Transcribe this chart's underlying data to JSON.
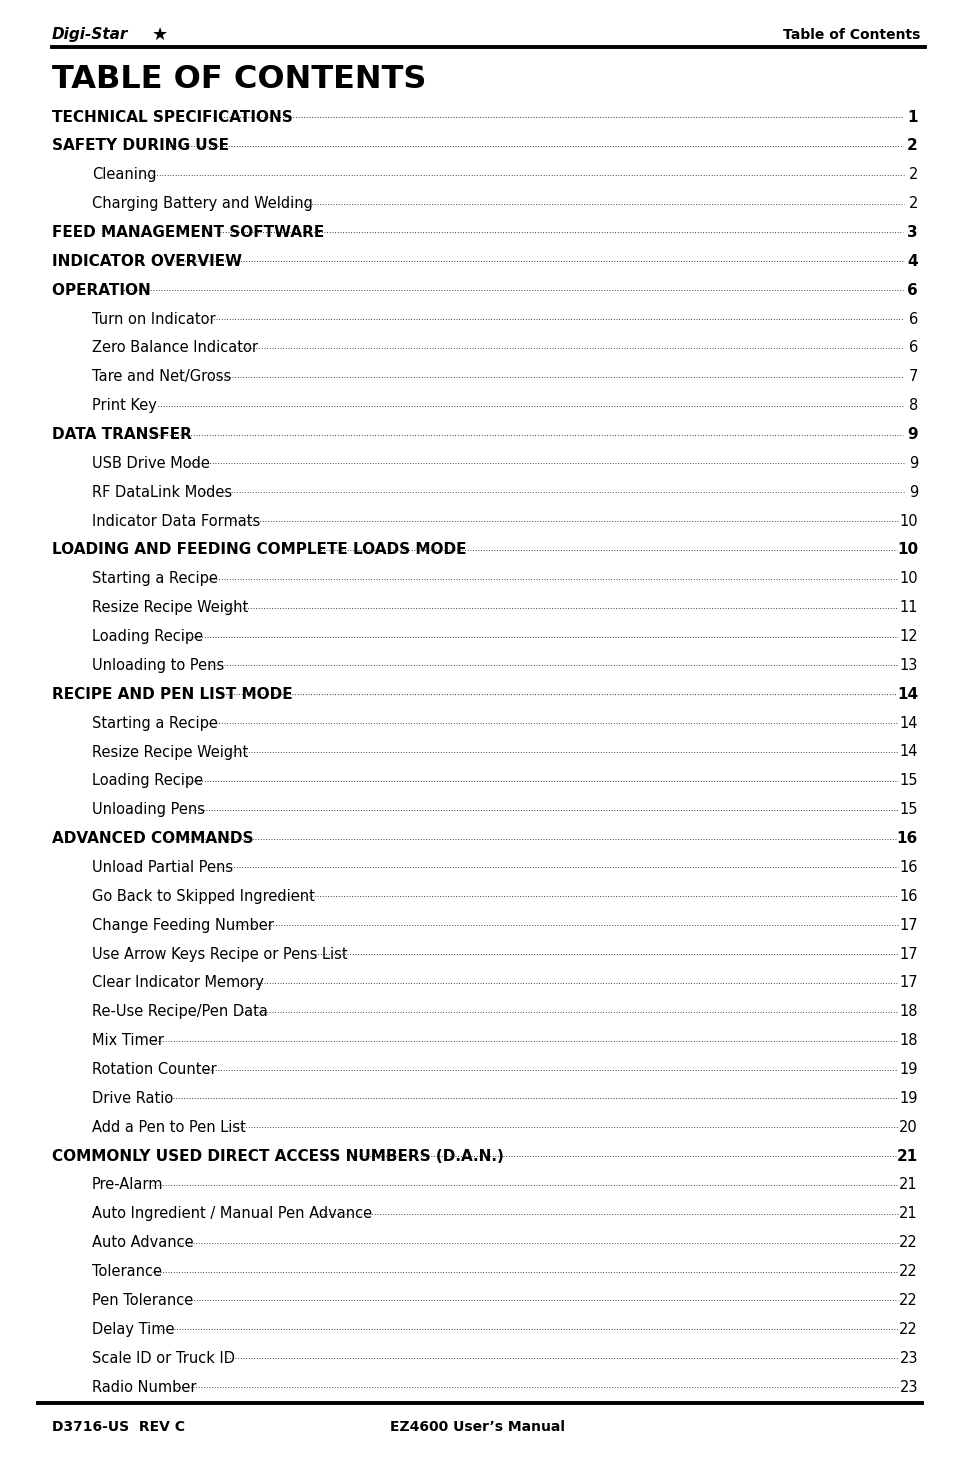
{
  "title": "TABLE OF CONTENTS",
  "header_right": "Table of Contents",
  "footer_left": "D3716-US  REV C",
  "footer_center": "EZ4600 User’s Manual",
  "bg_color": "#ffffff",
  "entries": [
    {
      "text": "TECHNICAL SPECIFICATIONS",
      "page": "1",
      "indent": 0,
      "bold": true
    },
    {
      "text": "SAFETY DURING USE",
      "page": "2",
      "indent": 0,
      "bold": true
    },
    {
      "text": "Cleaning",
      "page": "2",
      "indent": 1,
      "bold": false
    },
    {
      "text": "Charging Battery and Welding ",
      "page": "2",
      "indent": 1,
      "bold": false
    },
    {
      "text": "FEED MANAGEMENT SOFTWARE ",
      "page": "3",
      "indent": 0,
      "bold": true
    },
    {
      "text": "INDICATOR OVERVIEW",
      "page": "4",
      "indent": 0,
      "bold": true
    },
    {
      "text": "OPERATION ",
      "page": "6",
      "indent": 0,
      "bold": true
    },
    {
      "text": "Turn on Indicator ",
      "page": "6",
      "indent": 1,
      "bold": false
    },
    {
      "text": "Zero Balance Indicator ",
      "page": "6",
      "indent": 1,
      "bold": false
    },
    {
      "text": "Tare and Net/Gross",
      "page": "7",
      "indent": 1,
      "bold": false
    },
    {
      "text": "Print Key ",
      "page": "8",
      "indent": 1,
      "bold": false
    },
    {
      "text": "DATA TRANSFER ",
      "page": "9",
      "indent": 0,
      "bold": true
    },
    {
      "text": "USB Drive Mode",
      "page": "9",
      "indent": 1,
      "bold": false
    },
    {
      "text": "RF DataLink Modes",
      "page": "9",
      "indent": 1,
      "bold": false
    },
    {
      "text": "Indicator Data Formats",
      "page": "10",
      "indent": 1,
      "bold": false
    },
    {
      "text": "LOADING AND FEEDING COMPLETE LOADS MODE ",
      "page": "10",
      "indent": 0,
      "bold": true
    },
    {
      "text": "Starting a Recipe ",
      "page": "10",
      "indent": 1,
      "bold": false
    },
    {
      "text": "Resize Recipe Weight",
      "page": "11",
      "indent": 1,
      "bold": false
    },
    {
      "text": "Loading Recipe",
      "page": "12",
      "indent": 1,
      "bold": false
    },
    {
      "text": "Unloading to Pens ",
      "page": "13",
      "indent": 1,
      "bold": false
    },
    {
      "text": "RECIPE AND PEN LIST MODE ",
      "page": "14",
      "indent": 0,
      "bold": true
    },
    {
      "text": "Starting a Recipe ",
      "page": "14",
      "indent": 1,
      "bold": false
    },
    {
      "text": "Resize Recipe Weight ",
      "page": "14",
      "indent": 1,
      "bold": false
    },
    {
      "text": "Loading Recipe",
      "page": "15",
      "indent": 1,
      "bold": false
    },
    {
      "text": "Unloading Pens ",
      "page": "15",
      "indent": 1,
      "bold": false
    },
    {
      "text": "ADVANCED COMMANDS",
      "page": "16",
      "indent": 0,
      "bold": true
    },
    {
      "text": "Unload Partial Pens",
      "page": "16",
      "indent": 1,
      "bold": false
    },
    {
      "text": "Go Back to Skipped Ingredient",
      "page": "16",
      "indent": 1,
      "bold": false
    },
    {
      "text": "Change Feeding Number ",
      "page": "17",
      "indent": 1,
      "bold": false
    },
    {
      "text": "Use Arrow Keys Recipe or Pens List ",
      "page": "17",
      "indent": 1,
      "bold": false
    },
    {
      "text": "Clear Indicator Memory ",
      "page": "17",
      "indent": 1,
      "bold": false
    },
    {
      "text": "Re-Use Recipe/Pen Data ",
      "page": "18",
      "indent": 1,
      "bold": false
    },
    {
      "text": "Mix Timer",
      "page": "18",
      "indent": 1,
      "bold": false
    },
    {
      "text": "Rotation Counter ",
      "page": "19",
      "indent": 1,
      "bold": false
    },
    {
      "text": "Drive Ratio",
      "page": "19",
      "indent": 1,
      "bold": false
    },
    {
      "text": "Add a Pen to Pen List",
      "page": "20",
      "indent": 1,
      "bold": false
    },
    {
      "text": "COMMONLY USED DIRECT ACCESS NUMBERS (D.A.N.) ",
      "page": "21",
      "indent": 0,
      "bold": true
    },
    {
      "text": "Pre-Alarm",
      "page": "21",
      "indent": 1,
      "bold": false
    },
    {
      "text": "Auto Ingredient / Manual Pen Advance",
      "page": "21",
      "indent": 1,
      "bold": false
    },
    {
      "text": "Auto Advance ",
      "page": "22",
      "indent": 1,
      "bold": false
    },
    {
      "text": "Tolerance",
      "page": "22",
      "indent": 1,
      "bold": false
    },
    {
      "text": "Pen Tolerance ",
      "page": "22",
      "indent": 1,
      "bold": false
    },
    {
      "text": "Delay Time",
      "page": "22",
      "indent": 1,
      "bold": false
    },
    {
      "text": "Scale ID or Truck ID ",
      "page": "23",
      "indent": 1,
      "bold": false
    },
    {
      "text": "Radio Number ",
      "page": "23",
      "indent": 1,
      "bold": false
    }
  ]
}
